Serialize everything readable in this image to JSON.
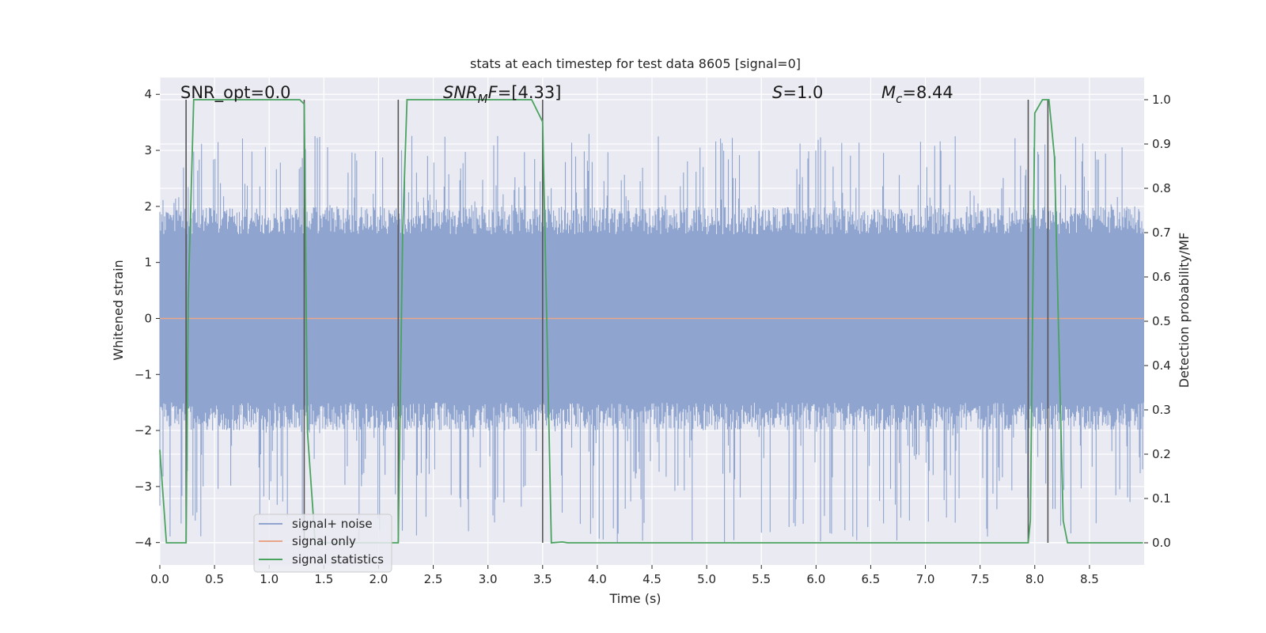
{
  "chart_data": {
    "type": "line",
    "title": "stats at each timestep for test data 8605 [signal=0]",
    "xlabel": "Time (s)",
    "ylabel_left": "Whitened strain",
    "ylabel_right": "Detection probability/MF",
    "xlim": [
      0.0,
      9.0
    ],
    "ylim_left": [
      -4.4,
      4.3
    ],
    "ylim_right": [
      -0.05,
      1.05
    ],
    "xticks": [
      "0.0",
      "0.5",
      "1.0",
      "1.5",
      "2.0",
      "2.5",
      "3.0",
      "3.5",
      "4.0",
      "4.5",
      "5.0",
      "5.5",
      "6.0",
      "6.5",
      "7.0",
      "7.5",
      "8.0",
      "8.5"
    ],
    "xtick_values": [
      0.0,
      0.5,
      1.0,
      1.5,
      2.0,
      2.5,
      3.0,
      3.5,
      4.0,
      4.5,
      5.0,
      5.5,
      6.0,
      6.5,
      7.0,
      7.5,
      8.0,
      8.5
    ],
    "yticks_left": [
      "−4",
      "−3",
      "−2",
      "−1",
      "0",
      "1",
      "2",
      "3",
      "4"
    ],
    "ytick_values_left": [
      -4,
      -3,
      -2,
      -1,
      0,
      1,
      2,
      3,
      4
    ],
    "yticks_right": [
      "0.0",
      "0.1",
      "0.2",
      "0.3",
      "0.4",
      "0.5",
      "0.6",
      "0.7",
      "0.8",
      "0.9",
      "1.0"
    ],
    "ytick_values_right": [
      0.0,
      0.1,
      0.2,
      0.3,
      0.4,
      0.5,
      0.6,
      0.7,
      0.8,
      0.9,
      1.0
    ],
    "grid": true,
    "annotations": {
      "snr_opt": "SNR_opt=0.0",
      "snr_mf_main": "SNR",
      "snr_mf_sub": "M",
      "snr_mf_rest": "F=[4.33]",
      "s_main": "S",
      "s_rest": "=1.0",
      "mc_main": "M",
      "mc_sub": "c",
      "mc_rest": "=8.44"
    },
    "legend": {
      "placement": "lower-left",
      "entries": [
        "signal+ noise",
        "signal only",
        "signal statistics"
      ]
    },
    "colors": {
      "noise": "#8fa5cf",
      "signal": "#e8a58a",
      "stats": "#4aa35f",
      "vlines": "#555555",
      "background": "#eaeaf2",
      "grid": "#ffffff"
    },
    "series": [
      {
        "name": "signal+ noise",
        "axis": "left",
        "description_range": [
          -4.0,
          3.3
        ],
        "summary": {
          "typical_lower": -1.5,
          "typical_upper": 1.5,
          "peak_max": 3.3,
          "peak_min": -4.0
        }
      },
      {
        "name": "signal only",
        "axis": "left",
        "x": [
          0.0,
          9.0
        ],
        "y": [
          0.0,
          0.0
        ]
      },
      {
        "name": "signal statistics",
        "axis": "right",
        "x": [
          0.0,
          0.06,
          0.24,
          0.26,
          0.31,
          1.28,
          1.32,
          1.35,
          1.42,
          1.45,
          2.18,
          2.22,
          2.26,
          3.4,
          3.5,
          3.53,
          3.58,
          3.68,
          3.73,
          7.94,
          7.96,
          8.0,
          8.07,
          8.13,
          8.18,
          8.23,
          8.26,
          8.3,
          8.99
        ],
        "y": [
          0.21,
          0.0,
          0.0,
          0.55,
          1.0,
          1.0,
          0.99,
          0.25,
          0.0,
          0.0,
          0.0,
          0.7,
          1.0,
          1.0,
          0.95,
          0.6,
          0.0,
          0.002,
          0.0,
          0.0,
          0.05,
          0.97,
          1.0,
          1.0,
          0.87,
          0.35,
          0.05,
          0.0,
          0.0
        ]
      }
    ],
    "vlines": [
      0.24,
      1.32,
      2.18,
      3.5,
      7.94,
      8.12
    ]
  }
}
